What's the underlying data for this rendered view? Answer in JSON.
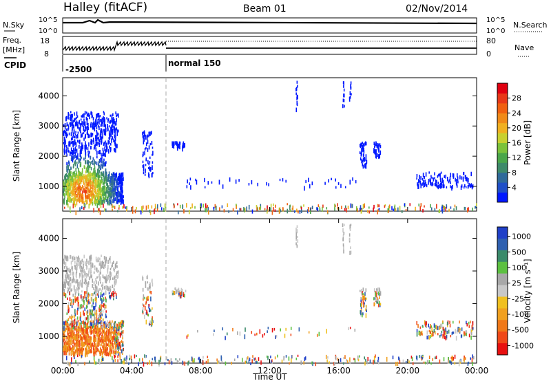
{
  "header": {
    "station": "Halley (fitACF)",
    "beam": "Beam 01",
    "date": "02/Nov/2014"
  },
  "top_panels": {
    "nsky_label": "N.Sky",
    "nsky_ticks": [
      "10^5",
      "10^0"
    ],
    "nsearch_label": "N.Search",
    "nsearch_ticks": [
      "10^5",
      "10^0"
    ],
    "freq_label": "Freq.",
    "freq_unit": "[MHz]",
    "freq_ticks": [
      "18",
      "8"
    ],
    "nave_label": "Nave",
    "nave_ticks": [
      "80",
      "0"
    ],
    "cpid_label": "CPID",
    "cpid_modes": [
      {
        "label": "-2500",
        "start_hour": 0
      },
      {
        "label": "normal 150",
        "start_hour": 6
      }
    ]
  },
  "chart_data": [
    {
      "type": "heatmap",
      "name": "power",
      "ylabel": "Slant Range [km]",
      "xlabel": "Time UT",
      "ylim": [
        180,
        4600
      ],
      "xlim": [
        0,
        24
      ],
      "y_ticks": [
        "1000",
        "2000",
        "3000",
        "4000"
      ],
      "x_ticks": [
        "00:00",
        "04:00",
        "08:00",
        "12:00",
        "16:00",
        "20:00",
        "00:00"
      ],
      "colorbar": {
        "label": "Power [dB]",
        "ticks": [
          "4",
          "8",
          "12",
          "16",
          "20",
          "24",
          "28"
        ],
        "colors": [
          "#0018ff",
          "#1f4fc8",
          "#2f6a9a",
          "#3e8a6a",
          "#4aa64a",
          "#7cc23a",
          "#c8d030",
          "#f0b020",
          "#f08a18",
          "#f06010",
          "#e83818",
          "#e00010"
        ]
      }
    },
    {
      "type": "heatmap",
      "name": "velocity",
      "ylabel": "Slant Range [km]",
      "xlabel": "Time UT",
      "ylim": [
        180,
        4600
      ],
      "xlim": [
        0,
        24
      ],
      "y_ticks": [
        "1000",
        "2000",
        "3000",
        "4000"
      ],
      "x_ticks": [
        "00:00",
        "04:00",
        "08:00",
        "12:00",
        "16:00",
        "20:00",
        "00:00"
      ],
      "colorbar": {
        "label": "Velocity [m s⁻¹]",
        "ticks": [
          "1000",
          "500",
          "100",
          "25",
          "-25",
          "-100",
          "-500",
          "-1000"
        ],
        "colors": [
          "#2040c8",
          "#2f60b0",
          "#3a8a6a",
          "#5cc040",
          "#a8a8a8",
          "#c8c8c8",
          "#f0c020",
          "#f0a020",
          "#f07818",
          "#f04818",
          "#e81010"
        ]
      }
    }
  ]
}
